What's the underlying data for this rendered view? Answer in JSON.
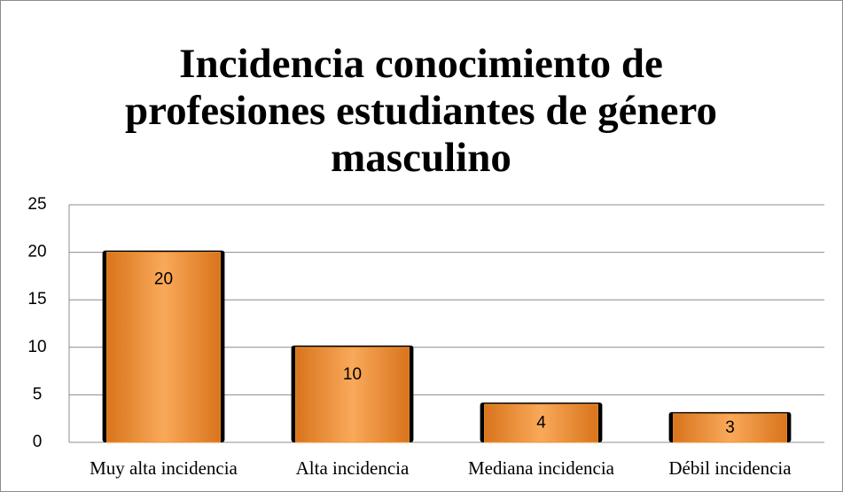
{
  "chart_data": {
    "type": "bar",
    "title": "Incidencia conocimiento de profesiones estudiantes de género masculino",
    "categories": [
      "Muy alta incidencia",
      "Alta incidencia",
      "Mediana incidencia",
      "Débil incidencia"
    ],
    "values": [
      20,
      10,
      4,
      3
    ],
    "color": "#f0922e",
    "ylim": [
      0,
      25
    ],
    "yticks": [
      0,
      5,
      10,
      15,
      20,
      25
    ],
    "grid": true
  }
}
